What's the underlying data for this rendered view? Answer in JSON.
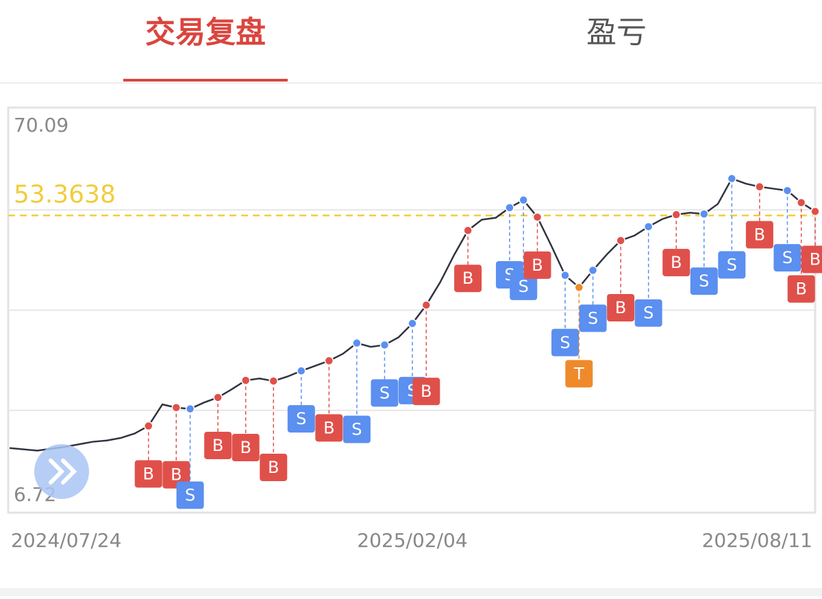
{
  "tabs": [
    "交易复盘",
    "盈亏"
  ],
  "chart_data": {
    "type": "line",
    "categories": [
      "2024/07/24",
      null,
      null,
      null,
      null,
      null,
      null,
      null,
      null,
      null,
      null,
      null,
      null,
      null,
      null,
      null,
      null,
      null,
      null,
      null,
      null,
      null,
      null,
      null,
      null,
      null,
      null,
      null,
      null,
      "2025/02/04",
      null,
      null,
      null,
      null,
      null,
      null,
      null,
      null,
      null,
      null,
      null,
      null,
      null,
      null,
      null,
      null,
      null,
      null,
      null,
      null,
      null,
      null,
      null,
      null,
      null,
      null,
      null,
      null,
      "2025/08/11"
    ],
    "series": [
      {
        "color": "#2f3440",
        "values": [
          16.6,
          16.4,
          16.2,
          16.5,
          16.8,
          17.2,
          17.6,
          17.8,
          18.2,
          18.9,
          20.1,
          23.5,
          23.0,
          22.8,
          23.8,
          24.6,
          25.9,
          27.3,
          27.6,
          27.2,
          27.9,
          28.8,
          29.6,
          30.4,
          31.5,
          33.2,
          32.6,
          32.9,
          34.1,
          36.3,
          39.2,
          42.8,
          47.1,
          51.0,
          52.7,
          53.0,
          54.6,
          55.8,
          53.1,
          48.6,
          43.9,
          42.0,
          44.7,
          47.2,
          49.4,
          50.2,
          51.6,
          52.8,
          53.5,
          53.8,
          53.6,
          55.2,
          59.2,
          58.4,
          57.9,
          57.6,
          57.3,
          55.4,
          54.0
        ]
      }
    ],
    "ylim": [
      6.72,
      70.09
    ],
    "yticks": [
      70.09,
      6.72
    ],
    "grid_lines": 4,
    "reference_line": {
      "value": 53.3638,
      "color": "#f2cc3b"
    },
    "side_colors": {
      "B": "#e0504a",
      "S": "#5b8ff0",
      "T": "#ef8a2b"
    },
    "trades": [
      {
        "side": "B",
        "x": 10,
        "price": 20.1
      },
      {
        "side": "B",
        "x": 12,
        "price": 23.0
      },
      {
        "side": "S",
        "x": 13,
        "price": 22.8
      },
      {
        "side": "B",
        "x": 15,
        "price": 24.6
      },
      {
        "side": "B",
        "x": 17,
        "price": 27.3
      },
      {
        "side": "B",
        "x": 19,
        "price": 27.2
      },
      {
        "side": "S",
        "x": 21,
        "price": 28.8
      },
      {
        "side": "B",
        "x": 23,
        "price": 30.4
      },
      {
        "side": "S",
        "x": 25,
        "price": 33.2
      },
      {
        "side": "S",
        "x": 27,
        "price": 32.9
      },
      {
        "side": "S",
        "x": 29,
        "price": 36.3
      },
      {
        "side": "B",
        "x": 30,
        "price": 39.2
      },
      {
        "side": "B",
        "x": 33,
        "price": 51.0
      },
      {
        "side": "S",
        "x": 36,
        "price": 54.6
      },
      {
        "side": "S",
        "x": 37,
        "price": 55.8
      },
      {
        "side": "B",
        "x": 38,
        "price": 53.1
      },
      {
        "side": "S",
        "x": 40,
        "price": 43.9
      },
      {
        "side": "T",
        "x": 41,
        "price": 42.0
      },
      {
        "side": "S",
        "x": 42,
        "price": 44.7
      },
      {
        "side": "B",
        "x": 44,
        "price": 49.4
      },
      {
        "side": "S",
        "x": 46,
        "price": 51.6
      },
      {
        "side": "B",
        "x": 48,
        "price": 53.5
      },
      {
        "side": "S",
        "x": 50,
        "price": 53.6
      },
      {
        "side": "S",
        "x": 52,
        "price": 59.2
      },
      {
        "side": "B",
        "x": 54,
        "price": 57.9
      },
      {
        "side": "S",
        "x": 56,
        "price": 57.3
      },
      {
        "side": "B",
        "x": 57,
        "price": 55.4
      },
      {
        "side": "B",
        "x": 58,
        "price": 54.0
      }
    ]
  }
}
